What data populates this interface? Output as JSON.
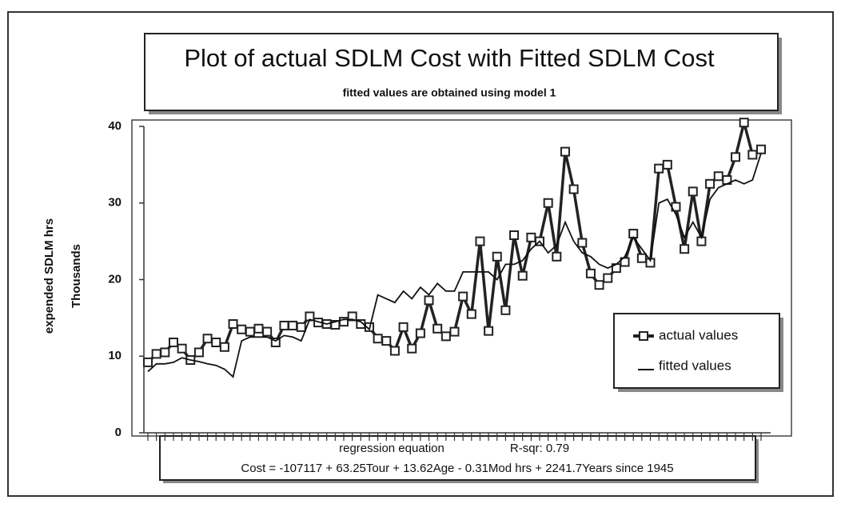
{
  "chart_data": {
    "type": "line",
    "title": "Plot of actual SDLM Cost with Fitted SDLM Cost",
    "subtitle": "fitted values are obtained using model 1",
    "y_label": "expended SDLM hrs",
    "y_unit_label": "Thousands",
    "categories": [
      null,
      null,
      null,
      null,
      null,
      null,
      null,
      null,
      null,
      null,
      null,
      null,
      null,
      null,
      null,
      null,
      null,
      null,
      null,
      null,
      null,
      null,
      null,
      null,
      null,
      null,
      null,
      null,
      null,
      null,
      null,
      null,
      null,
      null,
      null,
      null,
      null,
      null,
      null,
      null,
      null,
      null,
      null,
      null,
      null,
      null,
      null,
      null,
      null,
      null,
      null,
      null,
      null,
      null,
      null,
      null,
      null,
      null,
      null,
      null,
      null,
      null,
      null,
      null,
      null,
      null,
      null,
      null,
      null,
      null,
      null,
      null,
      null
    ],
    "series": [
      {
        "name": "actual values",
        "color": "#222222",
        "values": [
          9.2,
          10.3,
          10.5,
          11.8,
          11,
          9.5,
          10.5,
          12.3,
          11.8,
          11.2,
          14.2,
          13.5,
          13.2,
          13.6,
          13.2,
          11.8,
          14,
          14,
          13.8,
          15.2,
          14.4,
          14.2,
          14.1,
          14.5,
          15.2,
          14.2,
          13.8,
          12.3,
          12,
          10.7,
          13.8,
          11,
          13,
          17.3,
          13.6,
          12.6,
          13.2,
          17.8,
          15.5,
          25,
          13.3,
          23,
          16,
          25.8,
          20.5,
          25.5,
          25,
          30,
          23,
          36.7,
          31.8,
          24.8,
          20.8,
          19.3,
          20.2,
          21.5,
          22.3,
          26,
          22.8,
          22.2,
          34.5,
          35,
          29.5,
          24,
          31.5,
          25,
          32.5,
          33.5,
          33,
          36,
          40.5,
          36.3,
          37
        ]
      },
      {
        "name": "fitted values",
        "color": "#111111",
        "values": [
          8,
          9,
          9,
          9.2,
          9.8,
          9.5,
          9.3,
          9,
          8.8,
          8.3,
          7.3,
          12,
          12.5,
          12.5,
          12.5,
          12,
          12.7,
          12.5,
          12,
          14.8,
          14.5,
          14.2,
          14.5,
          14.8,
          14.8,
          14.5,
          13.5,
          18,
          17.5,
          17,
          18.5,
          17.5,
          19,
          18,
          19.5,
          18.5,
          18.5,
          21,
          21,
          21,
          21,
          20,
          22,
          22,
          22.5,
          24,
          25,
          23.5,
          24.5,
          27.5,
          25,
          23.5,
          23,
          22,
          21.5,
          22,
          23,
          25.5,
          24,
          22.5,
          30,
          30.5,
          28.5,
          25.5,
          27.5,
          25.5,
          30.5,
          32,
          32.5,
          33,
          32.5,
          33,
          36.5
        ]
      }
    ],
    "ylim": [
      0,
      40
    ],
    "yticks": [
      0,
      10,
      20,
      30,
      40
    ],
    "legend": "lower-right",
    "annotations": {
      "heading": "regression equation",
      "r_squared": "R-sqr:  0.79",
      "equation": "Cost = -107117 + 63.25Tour + 13.62Age - 0.31Mod hrs + 2241.7Years since 1945"
    }
  }
}
